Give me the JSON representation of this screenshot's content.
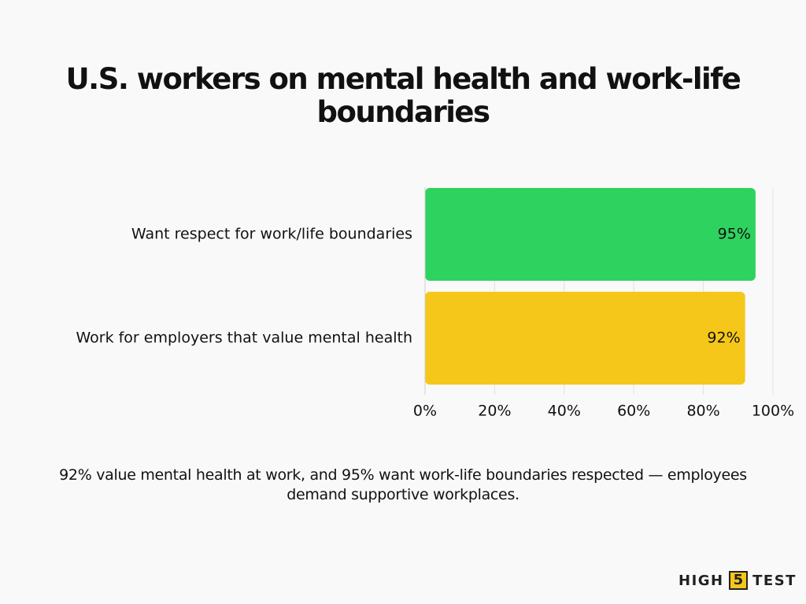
{
  "chart_data": {
    "type": "hbar",
    "title": "U.S. workers on mental health and work-life boundaries",
    "categories": [
      "Want respect for work/life boundaries",
      "Work for employers that value mental health"
    ],
    "values": [
      95,
      92
    ],
    "value_labels": [
      "95%",
      "92%"
    ],
    "colors": [
      "#2ed35f",
      "#f5c71a"
    ],
    "xlim": [
      0,
      100
    ],
    "xticks": [
      {
        "value": 0,
        "label": "0%"
      },
      {
        "value": 20,
        "label": "20%"
      },
      {
        "value": 40,
        "label": "40%"
      },
      {
        "value": 60,
        "label": "60%"
      },
      {
        "value": 80,
        "label": "80%"
      },
      {
        "value": 100,
        "label": "100%"
      }
    ],
    "grid": true,
    "caption": "92% value mental health at work, and 95% want work-life boundaries respected — employees demand supportive workplaces.",
    "brand": [
      "HIGH",
      "5",
      "TEST"
    ]
  }
}
